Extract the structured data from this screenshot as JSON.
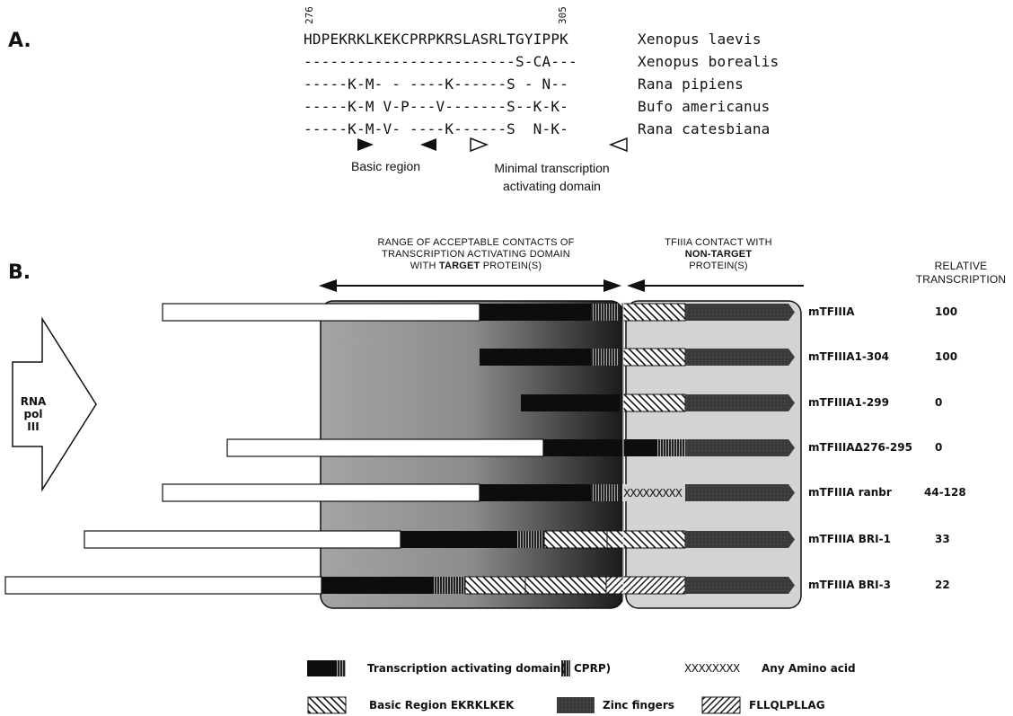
{
  "panelA": {
    "label": "A.",
    "pos_start": "276",
    "pos_end": "305",
    "rows": [
      {
        "seq": "HDPEKRKLKEKCPRPKRSLASRLTGYIPPK",
        "species": "Xenopus laevis"
      },
      {
        "seq": "------------------------S-CA---",
        "species": "Xenopus borealis"
      },
      {
        "seq": "-----K-M- - ----K------S - N--",
        "species": "Rana pipiens"
      },
      {
        "seq": "-----K-M V-P---V-------S--K-K-",
        "species": "Bufo americanus"
      },
      {
        "seq": "-----K-M-V- ----K------S  N-K-",
        "species": "Rana catesbiana"
      }
    ],
    "basic_region_label": "Basic region",
    "tad_label_line1": "Minimal transcription",
    "tad_label_line2": "activating domain"
  },
  "panelB": {
    "label": "B.",
    "header_left_line1": "RANGE OF ACCEPTABLE CONTACTS  OF",
    "header_left_line2": "TRANSCRIPTION ACTIVATING DOMAIN",
    "header_left_line3_a": "WITH ",
    "header_left_line3_b": "TARGET",
    "header_left_line3_c": "  PROTEIN(S)",
    "header_right_line1": "TFIIIA CONTACT WITH",
    "header_right_line2": "NON-TARGET",
    "header_right_line3": "PROTEIN(S)",
    "rel_line1": "RELATIVE",
    "rel_line2": "TRANSCRIPTION",
    "rna_line1": "RNA",
    "rna_line2": "pol III",
    "constructs": [
      {
        "name": "mTFIIIA",
        "value": "100"
      },
      {
        "name": "mTFIIIA1-304",
        "value": "100"
      },
      {
        "name": "mTFIIIA1-299",
        "value": "0"
      },
      {
        "name": "mTFIIIAΔ276-295",
        "value": "0"
      },
      {
        "name": "mTFIIIA ranbr",
        "value": "44-128"
      },
      {
        "name": "mTFIIIA BRI-1",
        "value": "33"
      },
      {
        "name": "mTFIIIA BRI-3",
        "value": "22"
      }
    ],
    "ranbr_fill": "XXXXXXXXX"
  },
  "legend": {
    "tad": "Transcription activating domain(",
    "cprp": "CPRP)",
    "any_symbol": "XXXXXXXX",
    "any_label": "Any Amino acid",
    "basic": "Basic Region EKRKLKEK",
    "zinc": "Zinc fingers",
    "fllq": "FLLQLPLLAG"
  },
  "colors": {
    "dark": "#0d0d0d",
    "zinc": "#3a3a3a",
    "grey_box": "#a9a9a9",
    "light_box": "#d3d3d3"
  }
}
